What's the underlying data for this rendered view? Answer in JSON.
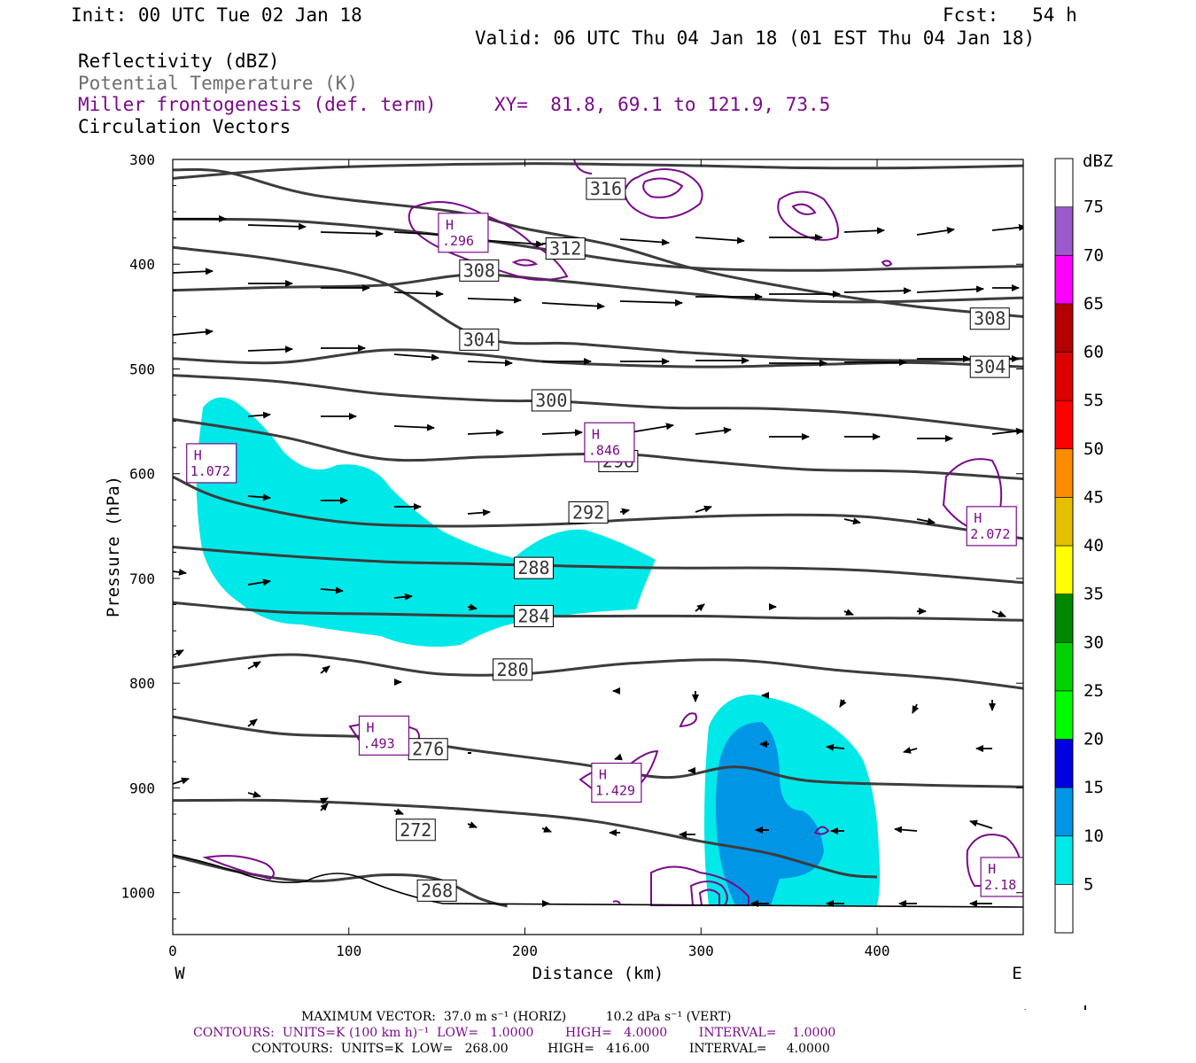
{
  "header": {
    "init": "Init: 00 UTC Tue 02 Jan 18",
    "fcst": "Fcst:   54 h",
    "valid": "Valid: 06 UTC Thu 04 Jan 18 (01 EST Thu 04 Jan 18)",
    "fields": [
      "Reflectivity (dBZ)",
      "Potential Temperature (K)",
      "Miller frontogenesis (def. term)",
      "Circulation Vectors"
    ],
    "xy": "XY=  81.8, 69.1 to 121.9, 73.5"
  },
  "colors": {
    "potential_temperature": "#3c3c3c",
    "frontogenesis": "#7a0a8a",
    "reflectivity_5": "#00e8e8",
    "reflectivity_10": "#0096e6",
    "vectors": "#000000"
  },
  "chart_data": {
    "type": "contour",
    "title": "",
    "xlabel": "Distance (km)",
    "ylabel": "Pressure (hPa)",
    "xlim": [
      0,
      483
    ],
    "ylim": [
      300,
      1040
    ],
    "y_inverted": true,
    "xticks": [
      "0",
      "100",
      "200",
      "300",
      "400"
    ],
    "yticks": [
      "300",
      "400",
      "500",
      "600",
      "700",
      "800",
      "900",
      "1000"
    ],
    "x_end_labels": {
      "left": "W",
      "right": "E"
    },
    "theta_contours": [
      {
        "label": "316",
        "points": [
          [
            0,
            318
          ],
          [
            60,
            310
          ],
          [
            120,
            306
          ],
          [
            200,
            304
          ],
          [
            260,
            305
          ],
          [
            300,
            306
          ],
          [
            360,
            308
          ],
          [
            420,
            308
          ],
          [
            483,
            306
          ]
        ],
        "label_at": [
          246,
          328
        ]
      },
      {
        "label": "312",
        "points": [
          [
            0,
            357
          ],
          [
            60,
            358
          ],
          [
            120,
            366
          ],
          [
            180,
            378
          ],
          [
            220,
            388
          ],
          [
            260,
            398
          ],
          [
            300,
            404
          ],
          [
            360,
            406
          ],
          [
            420,
            404
          ],
          [
            483,
            402
          ]
        ],
        "label_at": [
          223,
          385
        ]
      },
      {
        "label": "308",
        "points": [
          [
            0,
            425
          ],
          [
            60,
            422
          ],
          [
            120,
            420
          ],
          [
            170,
            410
          ],
          [
            220,
            416
          ],
          [
            280,
            426
          ],
          [
            340,
            434
          ],
          [
            400,
            436
          ],
          [
            483,
            432
          ]
        ],
        "label_at": [
          174,
          406
        ]
      },
      {
        "label": "308",
        "points": [
          [
            0,
            310
          ],
          [
            30,
            312
          ],
          [
            80,
            334
          ],
          [
            160,
            350
          ],
          [
            200,
            366
          ],
          [
            250,
            382
          ],
          [
            300,
            406
          ],
          [
            360,
            425
          ],
          [
            420,
            440
          ],
          [
            483,
            450
          ]
        ],
        "label_at": [
          464,
          452
        ]
      },
      {
        "label": "304",
        "points": [
          [
            0,
            490
          ],
          [
            60,
            494
          ],
          [
            120,
            482
          ],
          [
            170,
            486
          ],
          [
            220,
            494
          ],
          [
            300,
            498
          ],
          [
            360,
            496
          ],
          [
            420,
            494
          ],
          [
            483,
            498
          ]
        ],
        "label_at": [
          464,
          498
        ]
      },
      {
        "label": "304",
        "points": [
          [
            0,
            384
          ],
          [
            60,
            396
          ],
          [
            120,
            418
          ],
          [
            175,
            470
          ],
          [
            230,
            476
          ],
          [
            290,
            484
          ],
          [
            360,
            490
          ],
          [
            420,
            492
          ],
          [
            483,
            490
          ]
        ],
        "label_at": [
          174,
          472
        ]
      },
      {
        "label": "300",
        "points": [
          [
            0,
            506
          ],
          [
            60,
            512
          ],
          [
            120,
            524
          ],
          [
            180,
            530
          ],
          [
            220,
            531
          ],
          [
            280,
            537
          ],
          [
            340,
            538
          ],
          [
            400,
            544
          ],
          [
            483,
            560
          ]
        ],
        "label_at": [
          215,
          530
        ]
      },
      {
        "label": "296",
        "points": [
          [
            0,
            548
          ],
          [
            60,
            564
          ],
          [
            120,
            586
          ],
          [
            180,
            584
          ],
          [
            250,
            581
          ],
          [
            300,
            588
          ],
          [
            360,
            596
          ],
          [
            420,
            598
          ],
          [
            483,
            605
          ]
        ],
        "label_at": [
          253,
          588
        ]
      },
      {
        "label": "292",
        "points": [
          [
            0,
            603
          ],
          [
            30,
            625
          ],
          [
            90,
            645
          ],
          [
            150,
            650
          ],
          [
            220,
            648
          ],
          [
            260,
            644
          ],
          [
            320,
            640
          ],
          [
            380,
            640
          ],
          [
            420,
            646
          ],
          [
            483,
            662
          ]
        ],
        "label_at": [
          236,
          637
        ]
      },
      {
        "label": "288",
        "points": [
          [
            0,
            670
          ],
          [
            60,
            678
          ],
          [
            120,
            684
          ],
          [
            170,
            686
          ],
          [
            220,
            688
          ],
          [
            280,
            690
          ],
          [
            340,
            690
          ],
          [
            400,
            693
          ],
          [
            483,
            704
          ]
        ],
        "label_at": [
          205,
          690
        ]
      },
      {
        "label": "284",
        "points": [
          [
            0,
            723
          ],
          [
            60,
            732
          ],
          [
            120,
            734
          ],
          [
            180,
            736
          ],
          [
            240,
            736
          ],
          [
            300,
            736
          ],
          [
            360,
            738
          ],
          [
            420,
            738
          ],
          [
            483,
            740
          ]
        ],
        "label_at": [
          205,
          736
        ]
      },
      {
        "label": "280",
        "points": [
          [
            0,
            785
          ],
          [
            60,
            773
          ],
          [
            100,
            778
          ],
          [
            150,
            791
          ],
          [
            200,
            791
          ],
          [
            260,
            781
          ],
          [
            320,
            778
          ],
          [
            380,
            788
          ],
          [
            440,
            796
          ],
          [
            483,
            805
          ]
        ],
        "label_at": [
          193,
          787
        ]
      },
      {
        "label": "276",
        "points": [
          [
            0,
            832
          ],
          [
            60,
            848
          ],
          [
            120,
            852
          ],
          [
            170,
            864
          ],
          [
            230,
            877
          ],
          [
            280,
            890
          ],
          [
            320,
            880
          ],
          [
            360,
            893
          ],
          [
            420,
            897
          ],
          [
            483,
            899
          ]
        ],
        "label_at": [
          145,
          863
        ]
      },
      {
        "label": "272",
        "points": [
          [
            0,
            912
          ],
          [
            60,
            912
          ],
          [
            120,
            916
          ],
          [
            180,
            922
          ],
          [
            240,
            932
          ],
          [
            300,
            951
          ],
          [
            340,
            963
          ],
          [
            380,
            982
          ],
          [
            400,
            985
          ]
        ],
        "label_at": [
          138,
          940
        ]
      },
      {
        "label": "268",
        "points": [
          [
            0,
            965
          ],
          [
            40,
            981
          ],
          [
            80,
            989
          ],
          [
            120,
            983
          ],
          [
            150,
            987
          ],
          [
            175,
            1006
          ],
          [
            190,
            1013
          ]
        ],
        "label_at": [
          150,
          998
        ]
      }
    ],
    "frontogenesis_maxima": [
      {
        "label": "H",
        "value": "1.072",
        "x": 22,
        "p": 590
      },
      {
        "label": "H",
        "value": ".296",
        "x": 165,
        "p": 370
      },
      {
        "label": "H",
        "value": ".846",
        "x": 248,
        "p": 570
      },
      {
        "label": "H",
        "value": "2.072",
        "x": 465,
        "p": 650
      },
      {
        "label": "H",
        "value": ".493",
        "x": 120,
        "p": 850
      },
      {
        "label": "H",
        "value": "1.429",
        "x": 252,
        "p": 895
      },
      {
        "label": "H",
        "value": "2.18",
        "x": 473,
        "p": 985
      }
    ],
    "reflectivity_legend": {
      "title": "dBZ",
      "levels": [
        {
          "label": "5",
          "color": "#00e8e8"
        },
        {
          "label": "10",
          "color": "#0096e6"
        },
        {
          "label": "15",
          "color": "#0000e0"
        },
        {
          "label": "20",
          "color": "#00fa00"
        },
        {
          "label": "25",
          "color": "#00d200"
        },
        {
          "label": "30",
          "color": "#008800"
        },
        {
          "label": "35",
          "color": "#ffff00"
        },
        {
          "label": "40",
          "color": "#e6c000"
        },
        {
          "label": "45",
          "color": "#ff8c00"
        },
        {
          "label": "50",
          "color": "#ff0000"
        },
        {
          "label": "55",
          "color": "#dc0000"
        },
        {
          "label": "60",
          "color": "#b40000"
        },
        {
          "label": "65",
          "color": "#ff00ff"
        },
        {
          "label": "70",
          "color": "#9b59cc"
        },
        {
          "label": "75",
          "color": "#ffffff"
        }
      ]
    }
  },
  "footer": {
    "max_vector": "MAXIMUM VECTOR:  37.0 m s⁻¹ (HORIZ)          10.2 dPa s⁻¹ (VERT)",
    "contours_purple": "CONTOURS:  UNITS=K (100 km h)⁻¹  LOW=   1.0000        HIGH=   4.0000        INTERVAL=    1.0000",
    "contours_black": "CONTOURS:  UNITS=K  LOW=   268.00          HIGH=   416.00          INTERVAL=     4.0000"
  }
}
